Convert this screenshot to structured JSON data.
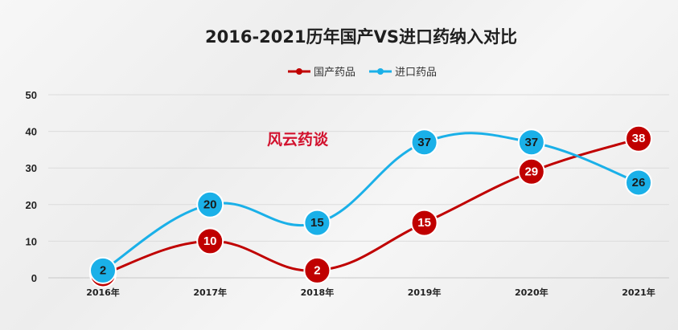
{
  "chart_data": {
    "type": "line",
    "title": "2016-2021历年国产VS进口药纳入对比",
    "categories": [
      "2016年",
      "2017年",
      "2018年",
      "2019年",
      "2020年",
      "2021年"
    ],
    "series": [
      {
        "name": "国产药品",
        "values": [
          1,
          10,
          2,
          15,
          29,
          38
        ],
        "color": "#c00000"
      },
      {
        "name": "进口药品",
        "values": [
          2,
          20,
          15,
          37,
          37,
          26
        ],
        "color": "#1ab0e8"
      }
    ],
    "ylim": [
      0,
      50
    ],
    "yticks": [
      0,
      10,
      20,
      30,
      40,
      50
    ],
    "grid": true,
    "legend": "top-center",
    "annotation": "风云药谈"
  }
}
